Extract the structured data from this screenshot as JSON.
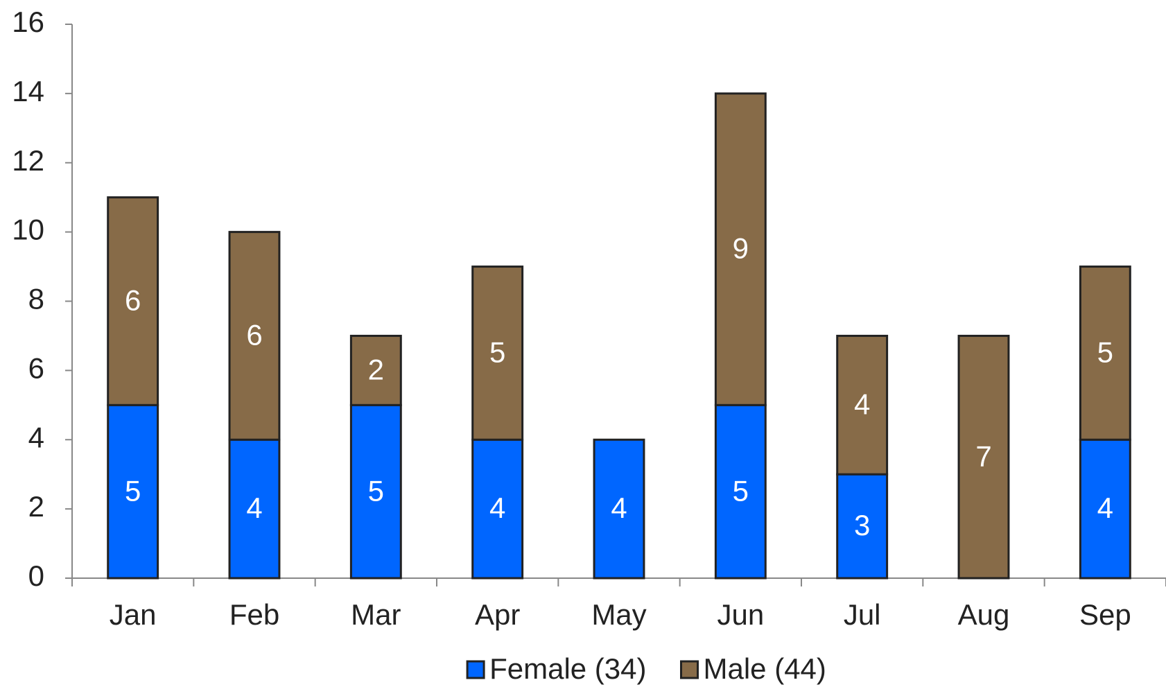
{
  "chart_data": {
    "type": "bar",
    "stacked": true,
    "categories": [
      "Jan",
      "Feb",
      "Mar",
      "Apr",
      "May",
      "Jun",
      "Jul",
      "Aug",
      "Sep"
    ],
    "series": [
      {
        "name": "Female (34)",
        "color": "#0066ff",
        "values": [
          5,
          4,
          5,
          4,
          4,
          5,
          3,
          0,
          4
        ]
      },
      {
        "name": "Male (44)",
        "color": "#876b48",
        "values": [
          6,
          6,
          2,
          5,
          0,
          9,
          4,
          7,
          5
        ]
      }
    ],
    "ylim": [
      0,
      16
    ],
    "yticks": [
      0,
      2,
      4,
      6,
      8,
      10,
      12,
      14,
      16
    ],
    "grid": false,
    "legend": "bottom"
  }
}
